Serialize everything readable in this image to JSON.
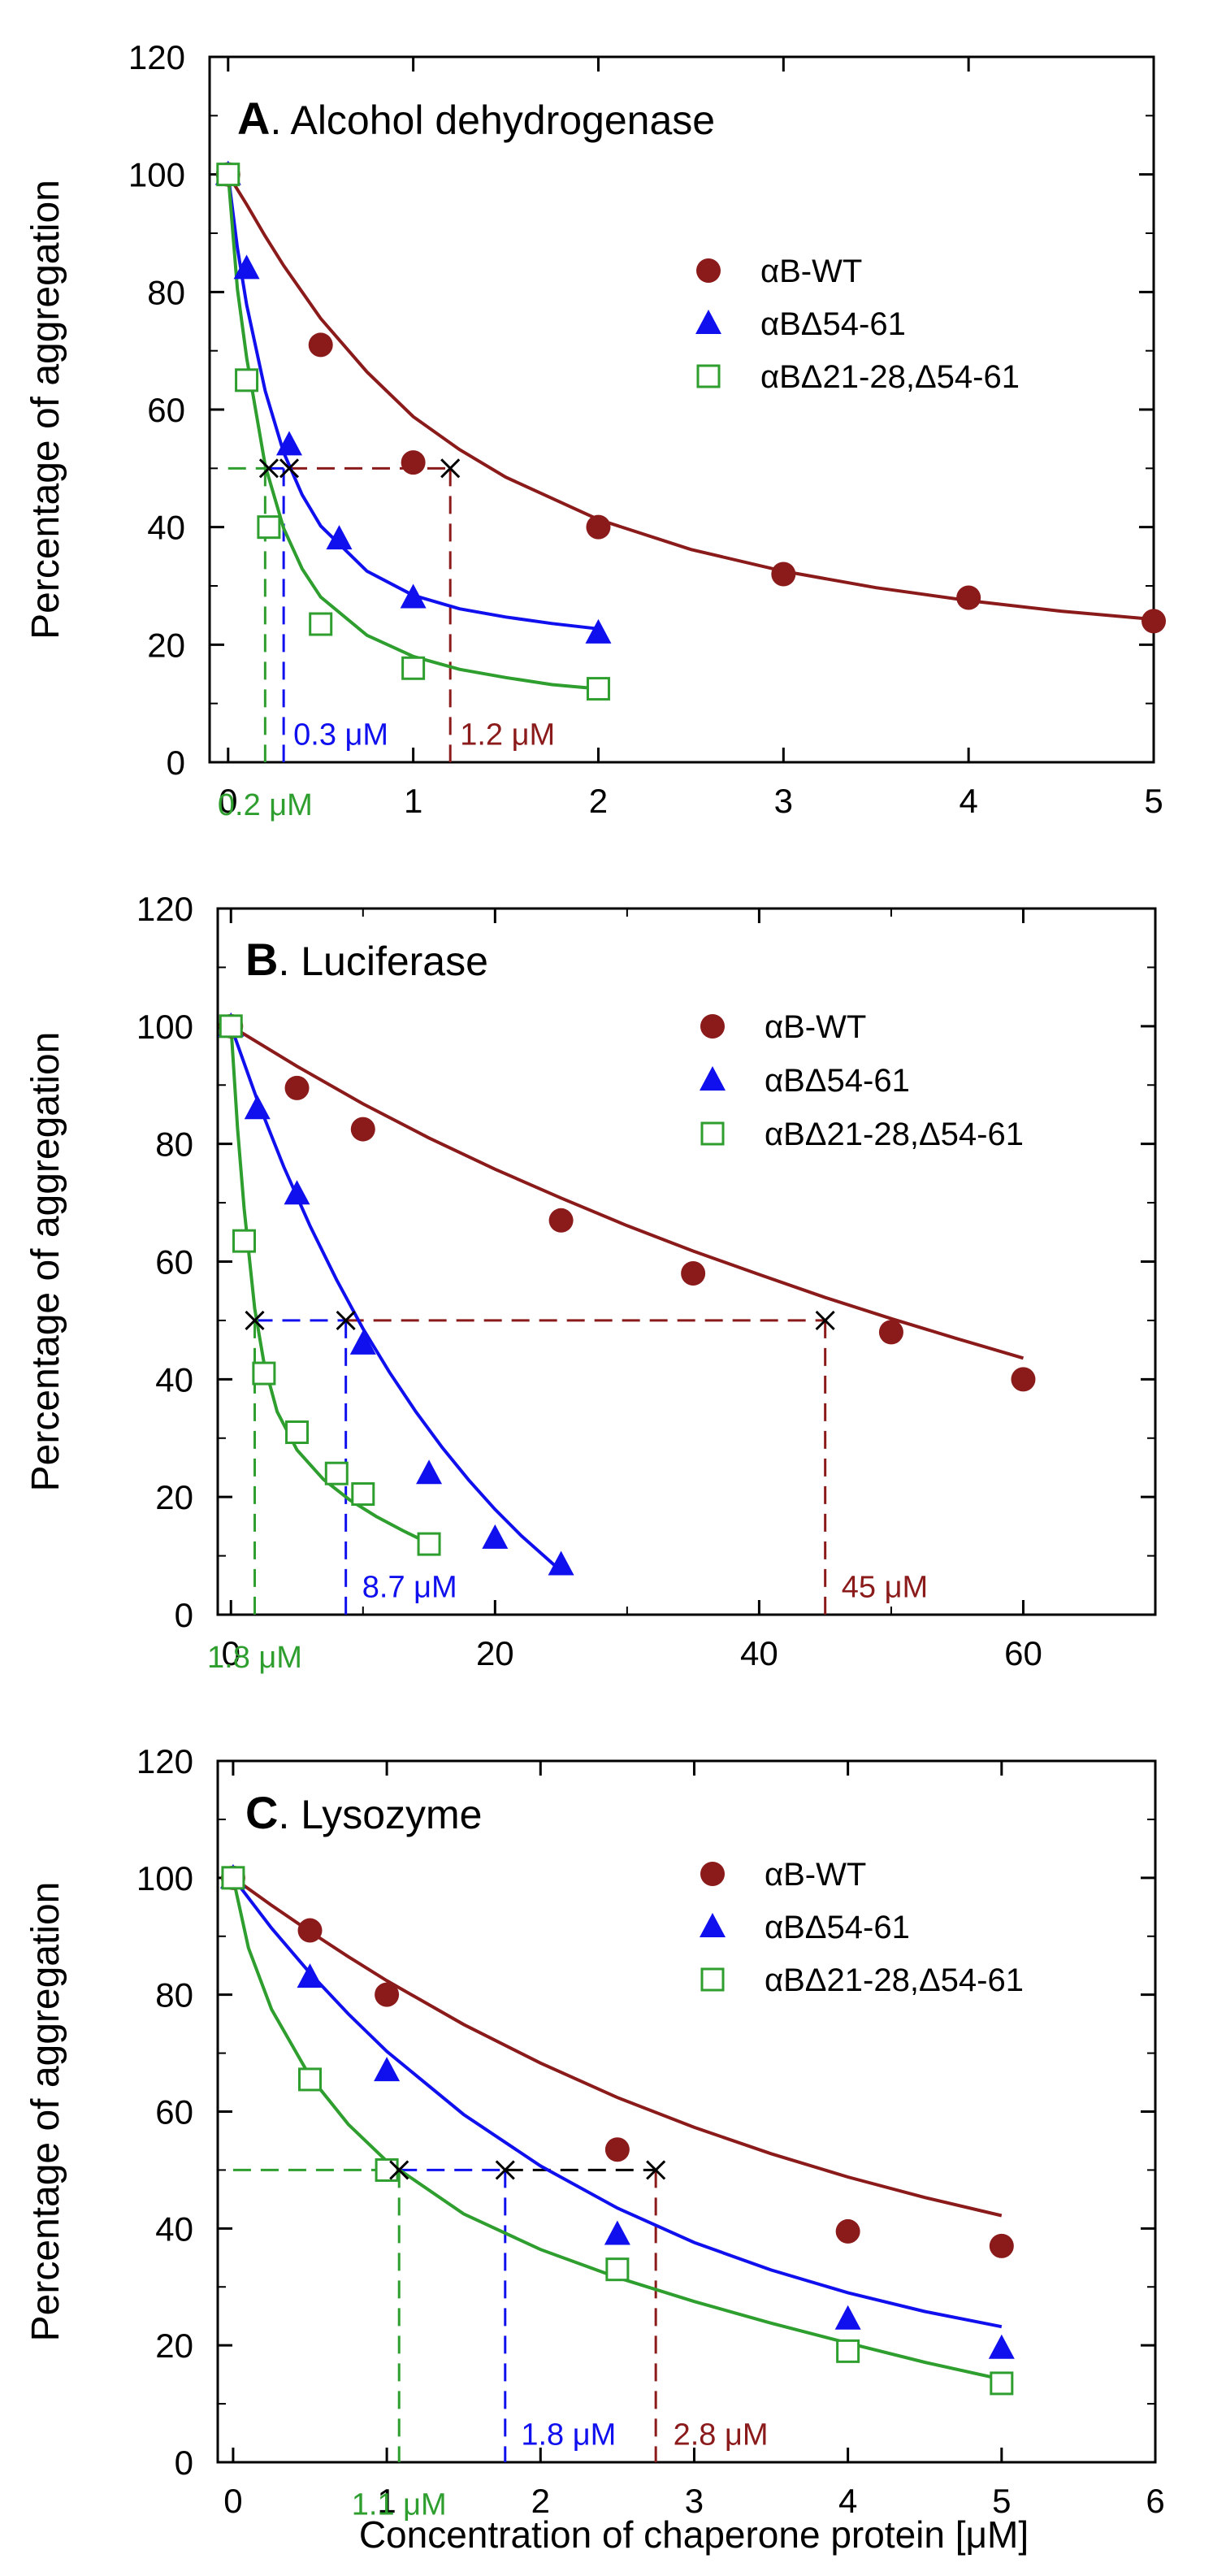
{
  "figure": {
    "xlabel": "Concentration of chaperone protein [μM]"
  },
  "chart_data": [
    {
      "type": "scatter",
      "title_letter": "A",
      "title_text": ". Alcohol dehydrogenase",
      "ylabel": "Percentage of aggregation",
      "xlim": [
        -0.1,
        5
      ],
      "ylim": [
        0,
        120
      ],
      "xticks": [
        0,
        1,
        2,
        3,
        4,
        5
      ],
      "yticks": [
        0,
        20,
        40,
        60,
        80,
        100,
        120
      ],
      "legend_position": "top-right",
      "series": [
        {
          "name": "αB-WT",
          "marker": "circle",
          "color": "#8b1a1a",
          "x": [
            0,
            0.5,
            1,
            2,
            3,
            4,
            5
          ],
          "y": [
            100,
            71,
            51,
            40,
            32,
            28,
            24
          ],
          "fit": [
            0,
            100,
            0.1,
            94.9,
            0.2,
            89.5,
            0.3,
            84.5,
            0.5,
            75.5,
            0.75,
            66.4,
            1,
            58.8,
            1.25,
            53.2,
            1.5,
            48.5,
            2,
            41.3,
            2.5,
            36.2,
            3,
            32.5,
            3.5,
            29.7,
            4,
            27.5,
            4.5,
            25.7,
            5,
            24.3
          ]
        },
        {
          "name": "αBΔ54-61",
          "marker": "triangle",
          "color": "#1010ee",
          "x": [
            0,
            0.1,
            0.33,
            0.6,
            1,
            2
          ],
          "y": [
            100,
            84,
            54,
            38,
            28,
            22
          ],
          "fit": [
            0,
            100,
            0.05,
            87.5,
            0.1,
            77.8,
            0.2,
            63.2,
            0.3,
            52.7,
            0.4,
            45.5,
            0.5,
            40.2,
            0.75,
            32.5,
            1,
            28.4,
            1.25,
            26.1,
            1.5,
            24.7,
            1.75,
            23.6,
            2,
            22.7
          ]
        },
        {
          "name": "αBΔ21-28,Δ54-61",
          "marker": "square",
          "color": "#2e9e2e",
          "x": [
            0,
            0.1,
            0.22,
            0.5,
            1,
            2
          ],
          "y": [
            100,
            65,
            40,
            23.5,
            16,
            12.5
          ],
          "fit": [
            0,
            100,
            0.05,
            80.5,
            0.1,
            68.8,
            0.2,
            50.5,
            0.3,
            39.8,
            0.4,
            32.9,
            0.5,
            28.1,
            0.75,
            21.6,
            1,
            18.0,
            1.25,
            15.8,
            1.5,
            14.4,
            1.75,
            13.2,
            2,
            12.5
          ]
        }
      ],
      "guides": [
        {
          "color": "#8b1a1a",
          "x": 1.2,
          "y": 50,
          "x_from": 0.33
        },
        {
          "color": "#1010ee",
          "x": 0.3,
          "y": 50,
          "x_from": 0.22
        },
        {
          "color": "#2e9e2e",
          "x": 0.2,
          "y": 50,
          "x_from": 0
        }
      ],
      "crosses": [
        [
          0.22,
          50
        ],
        [
          0.33,
          50
        ],
        [
          1.2,
          50
        ]
      ],
      "annotations": [
        {
          "text": "0.3 μM",
          "color": "#1010ee",
          "x": 0.3,
          "y": 3,
          "align": "start"
        },
        {
          "text": "1.2 μM",
          "color": "#8b1a1a",
          "x": 1.2,
          "y": 3,
          "align": "start"
        },
        {
          "text": "0.2 μM",
          "color": "#2e9e2e",
          "x": 0.2,
          "y": -9,
          "align": "middle"
        }
      ]
    },
    {
      "type": "scatter",
      "title_letter": "B",
      "title_text": ". Luciferase",
      "ylabel": "Percentage of aggregation",
      "xlim": [
        -1,
        70
      ],
      "ylim": [
        0,
        120
      ],
      "xticks": [
        0,
        20,
        40,
        60
      ],
      "xminor": [
        10,
        30,
        50,
        70
      ],
      "yticks": [
        0,
        20,
        40,
        60,
        80,
        100,
        120
      ],
      "legend_position": "top-right",
      "series": [
        {
          "name": "αB-WT",
          "marker": "circle",
          "color": "#8b1a1a",
          "x": [
            0,
            5,
            10,
            25,
            35,
            50,
            60
          ],
          "y": [
            100,
            89.5,
            82.5,
            67,
            58,
            48,
            40
          ],
          "fit": [
            0,
            100,
            5,
            93.2,
            10,
            86.8,
            15,
            81.0,
            20,
            75.7,
            25,
            70.8,
            30,
            66.1,
            35,
            61.8,
            40,
            57.8,
            45,
            53.9,
            50,
            50.3,
            55,
            46.9,
            60,
            43.6
          ]
        },
        {
          "name": "αBΔ54-61",
          "marker": "triangle",
          "color": "#1010ee",
          "x": [
            0,
            2,
            5,
            10,
            15,
            20,
            25
          ],
          "y": [
            100,
            86,
            71.5,
            46,
            24,
            13,
            8.5
          ],
          "fit": [
            0,
            100,
            2,
            87.4,
            4,
            76.1,
            6,
            66.0,
            8,
            56.9,
            10,
            48.6,
            12,
            41.2,
            14,
            34.5,
            16,
            28.4,
            18,
            22.9,
            20,
            17.9,
            22,
            13.4,
            25,
            7.4
          ]
        },
        {
          "name": "αBΔ21-28,Δ54-61",
          "marker": "square",
          "color": "#2e9e2e",
          "x": [
            0,
            1,
            2.5,
            5,
            8,
            10,
            15
          ],
          "y": [
            100,
            63.5,
            41,
            31,
            24,
            20.5,
            12
          ],
          "fit": [
            0,
            100,
            0.5,
            82.6,
            1,
            69.0,
            1.8,
            52.0,
            2.5,
            42.8,
            3.5,
            34.5,
            5,
            28.0,
            7,
            23.0,
            9,
            19.5,
            11,
            16.7,
            13,
            14.3,
            15,
            12.1
          ]
        }
      ],
      "guides": [
        {
          "color": "#8b1a1a",
          "x": 45,
          "y": 50,
          "x_from": 8.7
        },
        {
          "color": "#1010ee",
          "x": 8.7,
          "y": 50,
          "x_from": 1.8
        },
        {
          "color": "#2e9e2e",
          "x": 1.8,
          "y": 50,
          "x_from": 1.8
        }
      ],
      "crosses": [
        [
          1.8,
          50
        ],
        [
          8.7,
          50
        ],
        [
          45,
          50
        ]
      ],
      "annotations": [
        {
          "text": "8.7 μM",
          "color": "#1010ee",
          "x": 9.2,
          "y": 3,
          "align": "start"
        },
        {
          "text": "45 μM",
          "color": "#8b1a1a",
          "x": 45.5,
          "y": 3,
          "align": "start"
        },
        {
          "text": "1.8 μM",
          "color": "#2e9e2e",
          "x": 1.8,
          "y": -9,
          "align": "middle"
        }
      ]
    },
    {
      "type": "scatter",
      "title_letter": "C",
      "title_text": ". Lysozyme",
      "ylabel": "Percentage of aggregation",
      "xlim": [
        -0.1,
        6
      ],
      "ylim": [
        0,
        120
      ],
      "xticks": [
        0,
        1,
        2,
        3,
        4,
        5,
        6
      ],
      "yticks": [
        0,
        20,
        40,
        60,
        80,
        100,
        120
      ],
      "legend_position": "top-right",
      "series": [
        {
          "name": "αB-WT",
          "marker": "circle",
          "color": "#8b1a1a",
          "x": [
            0,
            0.5,
            1,
            2.5,
            4,
            5
          ],
          "y": [
            100,
            91,
            80,
            53.5,
            39.5,
            37
          ],
          "fit": [
            0,
            100,
            0.25,
            95.3,
            0.5,
            90.8,
            0.75,
            86.5,
            1,
            82.4,
            1.5,
            74.9,
            2,
            68.3,
            2.5,
            62.4,
            3,
            57.3,
            3.5,
            52.8,
            4,
            48.8,
            4.5,
            45.3,
            5,
            42.2
          ]
        },
        {
          "name": "αBΔ54-61",
          "marker": "triangle",
          "color": "#1010ee",
          "x": [
            0,
            0.5,
            1,
            2.5,
            4,
            5
          ],
          "y": [
            100,
            83,
            67,
            39,
            24.5,
            19.5
          ],
          "fit": [
            0,
            100,
            0.25,
            91.4,
            0.5,
            83.7,
            0.75,
            76.7,
            1,
            70.3,
            1.5,
            59.5,
            2,
            50.7,
            2.5,
            43.5,
            3,
            37.6,
            3.5,
            32.9,
            4,
            29.0,
            4.5,
            25.8,
            5,
            23.2
          ]
        },
        {
          "name": "αBΔ21-28,Δ54-61",
          "marker": "square",
          "color": "#2e9e2e",
          "x": [
            0,
            0.5,
            1,
            2.5,
            4,
            5
          ],
          "y": [
            100,
            65.5,
            50,
            33,
            19,
            13.5
          ],
          "fit": [
            0,
            100,
            0.1,
            88.0,
            0.25,
            77.5,
            0.5,
            66.0,
            0.75,
            57.8,
            1,
            51.5,
            1.5,
            42.5,
            2,
            36.4,
            2.5,
            31.6,
            3,
            27.5,
            3.5,
            23.8,
            4,
            20.4,
            4.5,
            17.1,
            5,
            14.2
          ]
        }
      ],
      "guides": [
        {
          "color": "#8b1a1a",
          "x": 2.75,
          "y": 50,
          "x_from": 1.77,
          "hcolor": "#000000"
        },
        {
          "color": "#1010ee",
          "x": 1.77,
          "y": 50,
          "x_from": 1.08
        },
        {
          "color": "#2e9e2e",
          "x": 1.08,
          "y": 50,
          "x_from": 0
        }
      ],
      "crosses": [
        [
          1.08,
          50
        ],
        [
          1.77,
          50
        ],
        [
          2.75,
          50
        ]
      ],
      "annotations": [
        {
          "text": "1.8 μM",
          "color": "#1010ee",
          "x": 1.81,
          "y": 3,
          "align": "start"
        },
        {
          "text": "2.8 μM",
          "color": "#8b1a1a",
          "x": 2.8,
          "y": 3,
          "align": "start"
        },
        {
          "text": "1.1 μM",
          "color": "#2e9e2e",
          "x": 1.08,
          "y": -9,
          "align": "middle"
        }
      ]
    }
  ]
}
